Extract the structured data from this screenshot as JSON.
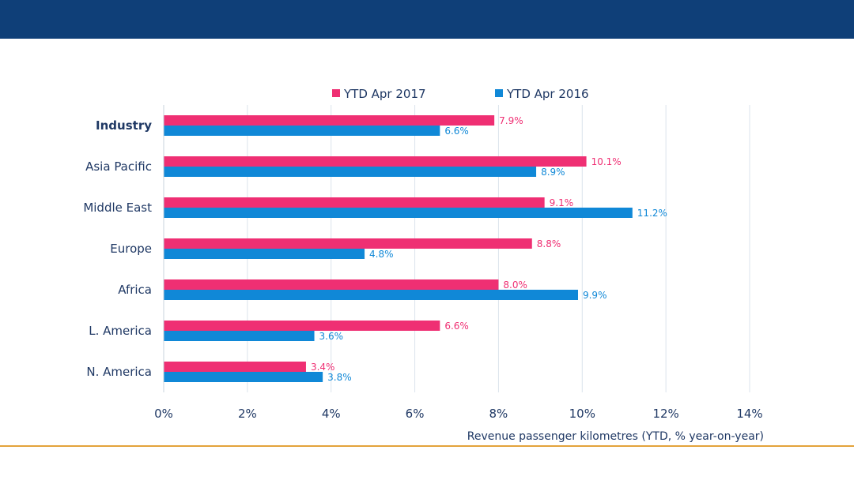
{
  "colors": {
    "header_bar": "#0f3f78",
    "footer_rule": "#e3a33b",
    "series_2017": "#ef2f73",
    "series_2016": "#1088d7",
    "text": "#1f3864",
    "grid": "#dbe3ec"
  },
  "chart_data": {
    "type": "bar",
    "orientation": "horizontal",
    "categories": [
      "Industry",
      "Asia Pacific",
      "Middle East",
      "Europe",
      "Africa",
      "L. America",
      "N. America"
    ],
    "bold_categories": [
      "Industry"
    ],
    "series": [
      {
        "name": "YTD Apr 2017",
        "color": "#ef2f73",
        "values": [
          7.9,
          10.1,
          9.1,
          8.8,
          8.0,
          6.6,
          3.4
        ],
        "labels": [
          "7.9%",
          "10.1%",
          "9.1%",
          "8.8%",
          "8.0%",
          "6.6%",
          "3.4%"
        ]
      },
      {
        "name": "YTD Apr 2016",
        "color": "#1088d7",
        "values": [
          6.6,
          8.9,
          11.2,
          4.8,
          9.9,
          3.6,
          3.8
        ],
        "labels": [
          "6.6%",
          "8.9%",
          "11.2%",
          "4.8%",
          "9.9%",
          "3.6%",
          "3.8%"
        ]
      }
    ],
    "xlim": [
      0,
      14
    ],
    "xticks": [
      0,
      2,
      4,
      6,
      8,
      10,
      12,
      14
    ],
    "xtick_labels": [
      "0%",
      "2%",
      "4%",
      "6%",
      "8%",
      "10%",
      "12%",
      "14%"
    ],
    "xlabel": "Revenue passenger kilometres (YTD, % year-on-year)",
    "grid": true,
    "legend_position": "top-center"
  }
}
